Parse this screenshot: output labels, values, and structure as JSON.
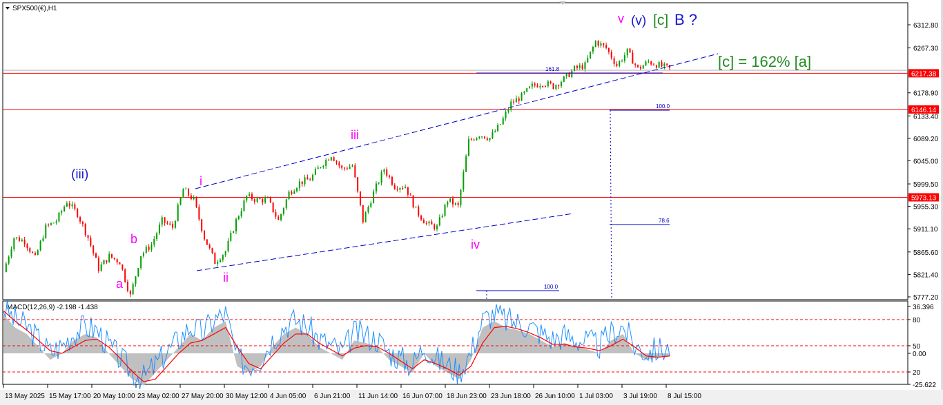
{
  "title": "SPX500(€),H1",
  "macd_label": "MACD(12,26,9) -2.198 -1.438",
  "colors": {
    "up": "#00a000",
    "down": "#ff0000",
    "line_level": "#ff0000",
    "trend": "#0000cc",
    "wave_minor": "#ff00ff",
    "wave_blue": "#1a1acc",
    "wave_green": "#228b22",
    "macd_main": "#1e90ff",
    "macd_signal": "#ff0000",
    "macd_hist": "#c0c0c0"
  },
  "price_axis": [
    "6312.80",
    "6267.30",
    "6178.90",
    "6133.40",
    "6089.20",
    "6045.00",
    "5999.50",
    "5955.30",
    "5911.10",
    "5865.60",
    "5821.40",
    "5777.20"
  ],
  "price_tags": [
    "6217.38",
    "6146.14",
    "5973.13"
  ],
  "macd_axis": [
    "36.396",
    "80",
    "50",
    "0.00",
    "20",
    "-25.622"
  ],
  "time_axis": [
    "13 May 2025",
    "15 May 17:00",
    "20 May 10:00",
    "23 May 02:00",
    "27 May 20:00",
    "30 May 12:00",
    "4 Jun 05:00",
    "6 Jun 21:00",
    "11 Jun 14:00",
    "16 Jun 07:00",
    "18 Jun 23:00",
    "23 Jun 18:00",
    "26 Jun 10:00",
    "1 Jul 03:00",
    "3 Jul 19:00",
    "8 Jul 15:00"
  ],
  "fib_labels": [
    "161.8",
    "100.0",
    "78.6",
    "100.0"
  ],
  "waves": {
    "iii_paren": "(iii)",
    "i": "i",
    "ii": "ii",
    "iii": "iii",
    "iv": "iv",
    "a": "a",
    "b": "b",
    "v": "v",
    "v_paren": "(v)",
    "c_bracket": "[c]",
    "B": "B ?",
    "projection": "[c] = 162% [a]"
  },
  "chart_data": {
    "type": "candlestick",
    "title": "SPX500(€),H1",
    "ylim": [
      5777.2,
      6312.8
    ],
    "levels": [
      6217.38,
      6146.14,
      5973.13
    ],
    "price_path": [
      5826,
      5894,
      5887,
      5853,
      5914,
      5927,
      5965,
      5941,
      5894,
      5833,
      5857,
      5846,
      5779,
      5860,
      5880,
      5927,
      5914,
      5989,
      5968,
      5894,
      5846,
      5867,
      5927,
      5975,
      5968,
      5968,
      5927,
      5982,
      6002,
      6009,
      6036,
      6057,
      6029,
      6036,
      5927,
      5982,
      6029,
      5995,
      5995,
      5948,
      5921,
      5914,
      5968,
      5955,
      6084,
      6097,
      6090,
      6117,
      6158,
      6172,
      6192,
      6199,
      6192,
      6206,
      6226,
      6233,
      6280,
      6267,
      6233,
      6260,
      6226,
      6240,
      6233,
      6226
    ],
    "macd": {
      "ylim": [
        -25.622,
        36.396
      ],
      "histogram": [
        30,
        20,
        15,
        5,
        -5,
        0,
        10,
        15,
        12,
        0,
        -10,
        -20,
        -25,
        -15,
        -5,
        5,
        15,
        10,
        20,
        25,
        -10,
        -15,
        -10,
        5,
        15,
        20,
        15,
        5,
        0,
        -5,
        10,
        8,
        5,
        -5,
        -10,
        -15,
        0,
        -10,
        -15,
        -20,
        -5,
        20,
        25,
        20,
        18,
        15,
        10,
        5,
        8,
        5,
        3,
        0,
        10,
        15,
        0,
        -5,
        -3,
        -2
      ],
      "signal": [
        33,
        25,
        18,
        10,
        2,
        0,
        5,
        10,
        11,
        5,
        -4,
        -14,
        -22,
        -20,
        -10,
        0,
        8,
        10,
        15,
        20,
        5,
        -8,
        -12,
        -2,
        8,
        15,
        15,
        8,
        3,
        -2,
        4,
        6,
        5,
        0,
        -6,
        -12,
        -5,
        -8,
        -12,
        -17,
        -10,
        8,
        20,
        21,
        19,
        16,
        12,
        7,
        7,
        5,
        4,
        2,
        6,
        11,
        5,
        -2,
        -3,
        -2
      ]
    }
  }
}
